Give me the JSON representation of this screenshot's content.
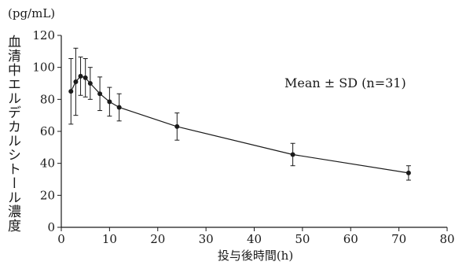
{
  "chart_data": {
    "type": "line",
    "ylabel": "血清中エルデカルシトール濃度",
    "yunit": "(pg/mL)",
    "xlabel": "投与後時間(h)",
    "annotation": "Mean ± SD (n=31)",
    "xlim": [
      0,
      80
    ],
    "ylim": [
      0,
      120
    ],
    "xticks": [
      0,
      10,
      20,
      30,
      40,
      50,
      60,
      70,
      80
    ],
    "yticks": [
      0,
      20,
      40,
      60,
      80,
      100,
      120
    ],
    "grid": false,
    "series": [
      {
        "x": [
          2,
          3,
          4,
          5,
          6,
          8,
          10,
          12,
          24,
          48,
          72
        ],
        "y": [
          85,
          91,
          94.5,
          93.5,
          90,
          83.5,
          78.5,
          75,
          63,
          45.5,
          34
        ],
        "sd": [
          20.5,
          21,
          12,
          12,
          10,
          10.5,
          9,
          8.5,
          8.5,
          7,
          4.5
        ]
      }
    ],
    "colors": {
      "line": "#1a1a1a"
    }
  }
}
